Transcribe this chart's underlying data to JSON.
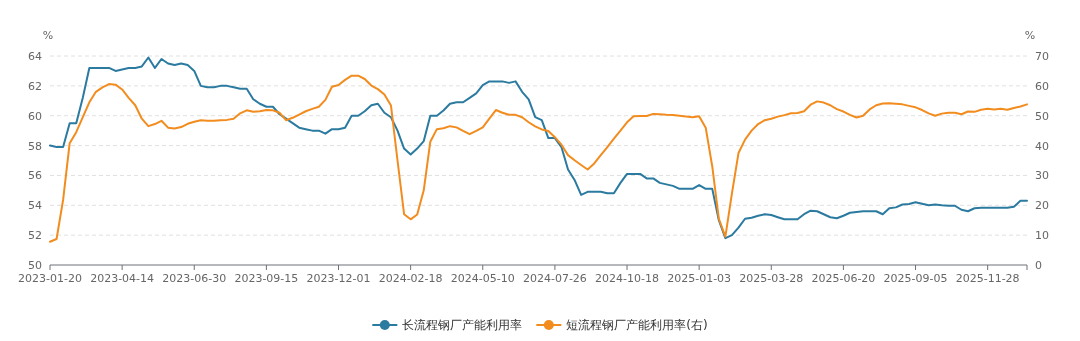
{
  "chart_data": {
    "type": "line",
    "categories": [
      "2023-01-20",
      null,
      null,
      null,
      null,
      null,
      null,
      null,
      null,
      null,
      null,
      "2023-04-14",
      null,
      null,
      null,
      null,
      null,
      null,
      null,
      null,
      null,
      null,
      "2023-06-30",
      null,
      null,
      null,
      null,
      null,
      null,
      null,
      null,
      null,
      null,
      "2023-09-15",
      null,
      null,
      null,
      null,
      null,
      null,
      null,
      null,
      null,
      null,
      "2023-12-01",
      null,
      null,
      null,
      null,
      null,
      null,
      null,
      null,
      null,
      null,
      "2024-02-18",
      null,
      null,
      null,
      null,
      null,
      null,
      null,
      null,
      null,
      null,
      "2024-05-10",
      null,
      null,
      null,
      null,
      null,
      null,
      null,
      null,
      null,
      null,
      "2024-07-26",
      null,
      null,
      null,
      null,
      null,
      null,
      null,
      null,
      null,
      null,
      "2024-10-18",
      null,
      null,
      null,
      null,
      null,
      null,
      null,
      null,
      null,
      null,
      "2025-01-03",
      null,
      null,
      null,
      null,
      null,
      null,
      null,
      null,
      null,
      null,
      "2025-03-28",
      null,
      null,
      null,
      null,
      null,
      null,
      null,
      null,
      null,
      null,
      "2025-06-20",
      null,
      null,
      null,
      null,
      null,
      null,
      null,
      null,
      null,
      null,
      "2025-09-05",
      null,
      null,
      null,
      null,
      null,
      null,
      null,
      null,
      null,
      null,
      "2025-11-28",
      null,
      null,
      null,
      null,
      null,
      null
    ],
    "series": [
      {
        "name": "长流程钢厂产能利用率",
        "color": "#2b7aa0",
        "values": [
          58.0,
          57.9,
          57.9,
          59.5,
          59.5,
          61.2,
          63.2,
          63.2,
          63.2,
          63.2,
          63.0,
          63.1,
          63.2,
          63.2,
          63.3,
          63.9,
          63.2,
          63.8,
          63.5,
          63.4,
          63.5,
          63.4,
          63.0,
          62.0,
          61.9,
          61.9,
          62.0,
          62.0,
          61.9,
          61.8,
          61.8,
          61.1,
          60.8,
          60.6,
          60.6,
          60.1,
          59.8,
          59.5,
          59.2,
          59.1,
          59.0,
          59.0,
          58.8,
          59.1,
          59.1,
          59.2,
          60.0,
          60.0,
          60.3,
          60.7,
          60.8,
          60.2,
          59.9,
          59.0,
          57.8,
          57.4,
          57.8,
          58.3,
          60.0,
          60.0,
          60.35,
          60.8,
          60.9,
          60.9,
          61.2,
          61.5,
          62.05,
          62.3,
          62.3,
          62.3,
          62.2,
          62.3,
          61.6,
          61.1,
          59.9,
          59.7,
          58.5,
          58.5,
          57.9,
          56.4,
          55.7,
          54.7,
          54.9,
          54.9,
          54.9,
          54.8,
          54.8,
          55.5,
          56.1,
          56.1,
          56.1,
          55.8,
          55.8,
          55.5,
          55.4,
          55.3,
          55.1,
          55.1,
          55.1,
          55.35,
          55.1,
          55.1,
          53.0,
          51.8,
          52.0,
          52.5,
          53.1,
          53.17,
          53.3,
          53.4,
          53.35,
          53.2,
          53.06,
          53.06,
          53.06,
          53.4,
          53.64,
          53.6,
          53.4,
          53.2,
          53.13,
          53.3,
          53.5,
          53.55,
          53.6,
          53.6,
          53.6,
          53.4,
          53.8,
          53.86,
          54.05,
          54.09,
          54.2,
          54.1,
          54.0,
          54.05,
          54.0,
          53.97,
          53.97,
          53.7,
          53.6,
          53.8,
          53.84,
          53.84,
          53.84,
          53.84,
          53.84,
          53.9,
          54.3,
          54.3
        ]
      },
      {
        "name": "短流程钢厂产能利用率(右)",
        "color": "#f28c1e",
        "axis": "y2",
        "values": [
          7.8,
          8.7,
          21.8,
          40.8,
          44.5,
          49.5,
          54.5,
          58.0,
          59.5,
          60.6,
          60.4,
          58.8,
          56.0,
          53.5,
          49.0,
          46.5,
          47.2,
          48.3,
          46.0,
          45.7,
          46.2,
          47.3,
          48.0,
          48.5,
          48.3,
          48.3,
          48.5,
          48.6,
          49.0,
          50.8,
          51.8,
          51.3,
          51.5,
          51.9,
          51.8,
          51.0,
          48.5,
          49.3,
          50.4,
          51.5,
          52.3,
          53.0,
          55.3,
          59.7,
          60.3,
          62.0,
          63.4,
          63.4,
          62.3,
          60.1,
          58.9,
          57.1,
          53.4,
          35.0,
          17.0,
          15.3,
          16.9,
          25.0,
          41.3,
          45.5,
          45.8,
          46.5,
          46.1,
          44.9,
          43.8,
          44.9,
          46.1,
          49.0,
          51.9,
          51.0,
          50.3,
          50.3,
          49.5,
          47.8,
          46.4,
          45.4,
          44.9,
          42.8,
          40.3,
          36.8,
          35.1,
          33.5,
          32.0,
          34.0,
          36.8,
          39.5,
          42.3,
          45.0,
          47.8,
          49.8,
          49.9,
          49.9,
          50.6,
          50.5,
          50.3,
          50.2,
          50.0,
          49.7,
          49.5,
          49.8,
          46.0,
          33.0,
          15.5,
          9.5,
          24.0,
          37.5,
          42.0,
          45.0,
          47.2,
          48.5,
          49.0,
          49.7,
          50.2,
          50.8,
          50.9,
          51.5,
          53.7,
          54.8,
          54.4,
          53.5,
          52.2,
          51.4,
          50.3,
          49.4,
          50.0,
          52.1,
          53.5,
          54.1,
          54.2,
          54.0,
          53.8,
          53.3,
          52.8,
          51.9,
          50.8,
          50.0,
          50.7,
          51.0,
          51.0,
          50.5,
          51.4,
          51.3,
          52.0,
          52.3,
          52.1,
          52.3,
          52.0,
          52.6,
          53.1,
          53.8
        ]
      }
    ],
    "ylabel": "%",
    "y2label": "%",
    "ylim": [
      50,
      64
    ],
    "yticks": [
      50,
      52,
      54,
      56,
      58,
      60,
      62,
      64
    ],
    "y2lim": [
      0,
      70
    ],
    "y2ticks": [
      0,
      10,
      20,
      30,
      40,
      50,
      60,
      70
    ],
    "grid": "y",
    "legend": "bottom",
    "marker": "none",
    "line_style": "solid"
  }
}
